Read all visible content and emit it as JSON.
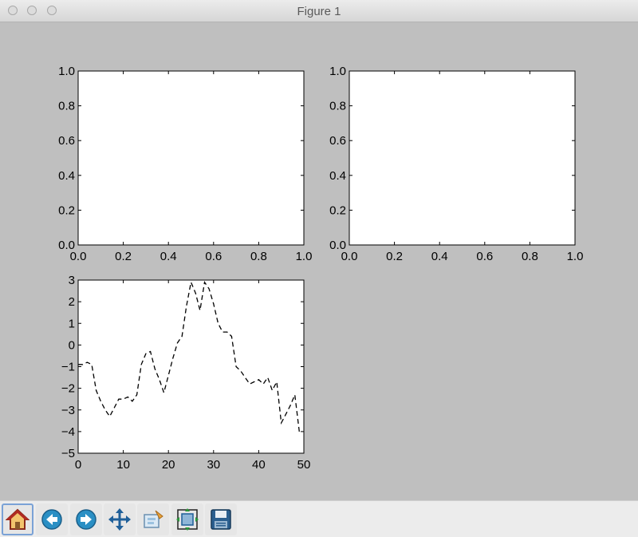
{
  "window": {
    "title": "Figure 1"
  },
  "toolbar": {
    "buttons": [
      {
        "name": "home-button",
        "icon": "home-icon"
      },
      {
        "name": "back-button",
        "icon": "back-arrow-icon"
      },
      {
        "name": "forward-button",
        "icon": "forward-arrow-icon"
      },
      {
        "name": "pan-button",
        "icon": "pan-arrows-icon"
      },
      {
        "name": "zoom-button",
        "icon": "zoom-rect-icon"
      },
      {
        "name": "subplots-button",
        "icon": "subplots-icon"
      },
      {
        "name": "save-button",
        "icon": "floppy-disk-icon"
      }
    ]
  },
  "chart_data": [
    {
      "type": "line",
      "xlim": [
        0,
        1
      ],
      "ylim": [
        0,
        1
      ],
      "xticks": [
        "0.0",
        "0.2",
        "0.4",
        "0.6",
        "0.8",
        "1.0"
      ],
      "yticks": [
        "0.0",
        "0.2",
        "0.4",
        "0.6",
        "0.8",
        "1.0"
      ],
      "series": []
    },
    {
      "type": "line",
      "xlim": [
        0,
        1
      ],
      "ylim": [
        0,
        1
      ],
      "xticks": [
        "0.0",
        "0.2",
        "0.4",
        "0.6",
        "0.8",
        "1.0"
      ],
      "yticks": [
        "0.0",
        "0.2",
        "0.4",
        "0.6",
        "0.8",
        "1.0"
      ],
      "series": []
    },
    {
      "type": "line",
      "xlim": [
        0,
        50
      ],
      "ylim": [
        -5,
        3
      ],
      "xticks": [
        "0",
        "10",
        "20",
        "30",
        "40",
        "50"
      ],
      "yticks": [
        "3",
        "2",
        "1",
        "0",
        "−1",
        "−2",
        "−3",
        "−4",
        "−5"
      ],
      "series": [
        {
          "style": "dashed",
          "color": "#000000",
          "x": [
            0,
            1,
            2,
            3,
            4,
            5,
            6,
            7,
            8,
            9,
            10,
            11,
            12,
            13,
            14,
            15,
            16,
            17,
            18,
            19,
            20,
            21,
            22,
            23,
            24,
            25,
            26,
            27,
            28,
            29,
            30,
            31,
            32,
            33,
            34,
            35,
            36,
            37,
            38,
            39,
            40,
            41,
            42,
            43,
            44,
            45,
            46,
            47,
            48,
            49
          ],
          "y": [
            -0.9,
            -0.9,
            -0.8,
            -0.9,
            -2.1,
            -2.6,
            -3.0,
            -3.3,
            -2.9,
            -2.5,
            -2.5,
            -2.4,
            -2.6,
            -2.3,
            -0.9,
            -0.4,
            -0.3,
            -1.1,
            -1.6,
            -2.2,
            -1.4,
            -0.6,
            0.1,
            0.4,
            1.8,
            2.9,
            2.4,
            1.6,
            2.9,
            2.6,
            1.9,
            1.0,
            0.6,
            0.6,
            0.4,
            -1.0,
            -1.2,
            -1.5,
            -1.8,
            -1.7,
            -1.6,
            -1.8,
            -1.5,
            -2.1,
            -1.7,
            -3.6,
            -3.2,
            -2.8,
            -2.3,
            -4.0
          ]
        }
      ]
    }
  ]
}
